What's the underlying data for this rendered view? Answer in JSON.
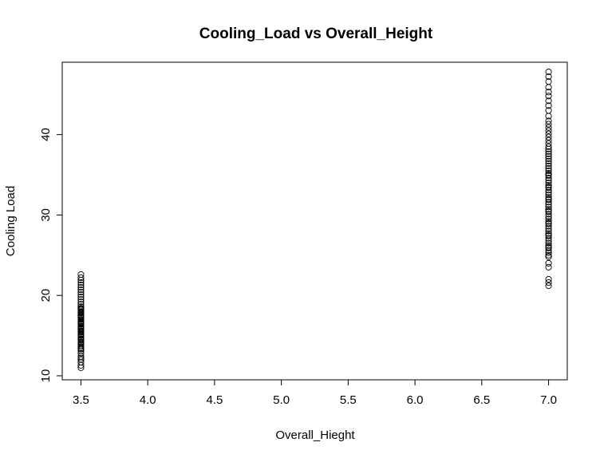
{
  "chart_data": {
    "type": "scatter",
    "title": "Cooling_Load vs Overall_Height",
    "xlabel": "Overall_Hieght",
    "ylabel": "Cooling Load",
    "xlim": [
      3.36,
      7.14
    ],
    "ylim": [
      9.5,
      49
    ],
    "xticks": [
      3.5,
      4.0,
      4.5,
      5.0,
      5.5,
      6.0,
      6.5,
      7.0
    ],
    "xtick_labels": [
      "3.5",
      "4.0",
      "4.5",
      "5.0",
      "5.5",
      "6.0",
      "6.5",
      "7.0"
    ],
    "yticks": [
      10,
      20,
      30,
      40
    ],
    "ytick_labels": [
      "10",
      "20",
      "30",
      "40"
    ],
    "grid": false,
    "legend": "none",
    "series": [
      {
        "x": [
          3.5,
          3.5,
          3.5,
          3.5,
          3.5,
          3.5,
          3.5,
          3.5,
          3.5,
          3.5,
          3.5,
          3.5,
          3.5,
          3.5,
          3.5,
          3.5,
          3.5,
          3.5,
          3.5,
          3.5,
          3.5,
          3.5,
          3.5,
          3.5,
          3.5,
          3.5,
          3.5,
          3.5,
          3.5,
          3.5,
          3.5,
          3.5,
          3.5,
          3.5,
          3.5,
          3.5,
          3.5,
          3.5,
          3.5,
          3.5,
          3.5,
          3.5,
          3.5,
          3.5,
          3.5,
          3.5,
          3.5,
          3.5,
          3.5,
          3.5,
          3.5,
          3.5,
          3.5,
          3.5,
          3.5,
          3.5,
          3.5,
          3.5,
          3.5,
          3.5
        ],
        "y": [
          11.0,
          11.3,
          11.7,
          12.0,
          12.4,
          12.8,
          13.1,
          13.4,
          13.6,
          13.8,
          14.0,
          14.2,
          14.4,
          14.6,
          14.8,
          15.0,
          15.2,
          15.4,
          15.6,
          15.8,
          16.0,
          16.2,
          16.4,
          16.6,
          16.8,
          17.0,
          17.2,
          17.4,
          17.6,
          17.8,
          18.0,
          18.2,
          18.4,
          18.6,
          18.9,
          19.2,
          19.5,
          19.8,
          20.1,
          20.4,
          20.7,
          21.0,
          21.3,
          21.6,
          21.9,
          22.2,
          22.6,
          13.3,
          14.1,
          15.1,
          15.9,
          16.7,
          17.3,
          17.9,
          18.3,
          14.5,
          15.5,
          16.5,
          17.5,
          12.2
        ]
      },
      {
        "x": [
          7.0,
          7.0,
          7.0,
          7.0,
          7.0,
          7.0,
          7.0,
          7.0,
          7.0,
          7.0,
          7.0,
          7.0,
          7.0,
          7.0,
          7.0,
          7.0,
          7.0,
          7.0,
          7.0,
          7.0,
          7.0,
          7.0,
          7.0,
          7.0,
          7.0,
          7.0,
          7.0,
          7.0,
          7.0,
          7.0,
          7.0,
          7.0,
          7.0,
          7.0,
          7.0,
          7.0,
          7.0,
          7.0,
          7.0,
          7.0,
          7.0,
          7.0,
          7.0,
          7.0,
          7.0,
          7.0,
          7.0,
          7.0,
          7.0,
          7.0,
          7.0,
          7.0,
          7.0,
          7.0,
          7.0,
          7.0,
          7.0,
          7.0,
          7.0,
          7.0,
          7.0,
          7.0,
          7.0,
          7.0,
          7.0,
          7.0,
          7.0,
          7.0,
          7.0,
          7.0,
          7.0,
          7.0,
          7.0,
          7.0,
          7.0,
          7.0,
          7.0
        ],
        "y": [
          21.2,
          21.6,
          22.0,
          23.5,
          24.0,
          24.8,
          25.0,
          25.3,
          25.6,
          25.9,
          26.2,
          26.5,
          26.8,
          27.1,
          27.4,
          27.7,
          28.0,
          28.3,
          28.6,
          28.9,
          29.2,
          29.5,
          29.8,
          30.1,
          30.4,
          30.7,
          31.0,
          31.3,
          31.6,
          31.9,
          32.2,
          32.5,
          32.8,
          33.1,
          33.4,
          33.7,
          34.0,
          34.3,
          34.6,
          34.9,
          35.2,
          35.5,
          35.8,
          36.1,
          36.4,
          36.7,
          37.0,
          37.3,
          37.6,
          37.9,
          38.2,
          38.5,
          38.9,
          39.3,
          39.7,
          40.1,
          40.5,
          40.9,
          41.3,
          41.7,
          42.3,
          43.0,
          43.6,
          44.2,
          44.8,
          45.3,
          45.9,
          46.6,
          47.2,
          47.8,
          26.0,
          27.5,
          29.0,
          30.5,
          32.0,
          33.5,
          35.0
        ]
      }
    ]
  }
}
